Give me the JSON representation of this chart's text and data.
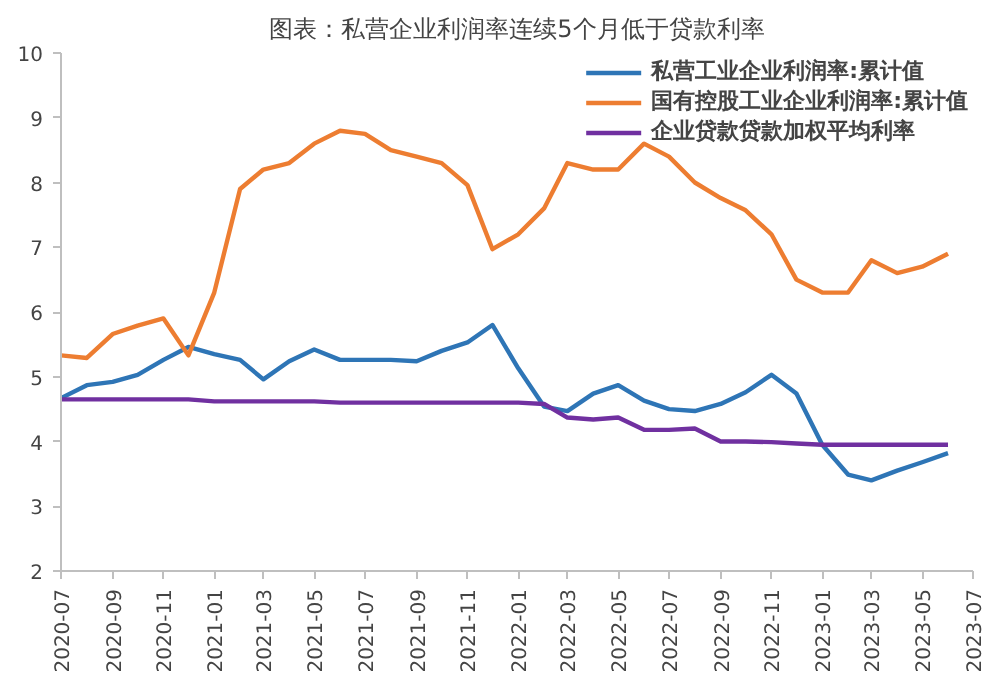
{
  "chart_data": {
    "type": "line",
    "title": "图表：私营企业利润率连续5个月低于贷款利率",
    "x": [
      "2020-07",
      "2020-08",
      "2020-09",
      "2020-10",
      "2020-11",
      "2020-12",
      "2021-01",
      "2021-02",
      "2021-03",
      "2021-04",
      "2021-05",
      "2021-06",
      "2021-07",
      "2021-08",
      "2021-09",
      "2021-10",
      "2021-11",
      "2021-12",
      "2022-01",
      "2022-02",
      "2022-03",
      "2022-04",
      "2022-05",
      "2022-06",
      "2022-07",
      "2022-08",
      "2022-09",
      "2022-10",
      "2022-11",
      "2022-12",
      "2023-01",
      "2023-02",
      "2023-03",
      "2023-04",
      "2023-05",
      "2023-06"
    ],
    "series": [
      {
        "name": "私营工业企业利润率:累计值",
        "color": "#2e75b6",
        "values": [
          4.67,
          4.87,
          4.92,
          5.03,
          5.26,
          5.46,
          5.35,
          5.26,
          4.96,
          5.24,
          5.42,
          5.26,
          5.26,
          5.26,
          5.24,
          5.4,
          5.53,
          5.8,
          5.13,
          4.54,
          4.47,
          4.74,
          4.87,
          4.63,
          4.5,
          4.47,
          4.58,
          4.76,
          5.03,
          4.74,
          3.95,
          3.49,
          3.4,
          3.55,
          3.68,
          3.82
        ]
      },
      {
        "name": "国有控股工业企业利润率:累计值",
        "color": "#ed7d31",
        "values": [
          5.33,
          5.29,
          5.66,
          5.79,
          5.9,
          5.33,
          6.3,
          7.9,
          8.2,
          8.3,
          8.6,
          8.8,
          8.75,
          8.5,
          8.4,
          8.3,
          7.96,
          6.97,
          7.2,
          7.6,
          8.3,
          8.2,
          8.2,
          8.6,
          8.4,
          8.0,
          7.76,
          7.57,
          7.2,
          6.5,
          6.3,
          6.3,
          6.8,
          6.6,
          6.7,
          6.9
        ]
      },
      {
        "name": "企业贷款贷款加权平均利率",
        "color": "#7030a0",
        "values": [
          4.65,
          4.65,
          4.65,
          4.65,
          4.65,
          4.65,
          4.62,
          4.62,
          4.62,
          4.62,
          4.62,
          4.6,
          4.6,
          4.6,
          4.6,
          4.6,
          4.6,
          4.6,
          4.6,
          4.58,
          4.37,
          4.34,
          4.37,
          4.18,
          4.18,
          4.2,
          4.0,
          4.0,
          3.99,
          3.97,
          3.95,
          3.95,
          3.95,
          3.95,
          3.95,
          3.95
        ]
      }
    ],
    "xlim": [
      "2020-07",
      "2023-07"
    ],
    "xticks": [
      "2020-07",
      "2020-09",
      "2020-11",
      "2021-01",
      "2021-03",
      "2021-05",
      "2021-07",
      "2021-09",
      "2021-11",
      "2022-01",
      "2022-03",
      "2022-05",
      "2022-07",
      "2022-09",
      "2022-11",
      "2023-01",
      "2023-03",
      "2023-05",
      "2023-07"
    ],
    "ylim": [
      2,
      10
    ],
    "yticks": [
      2,
      3,
      4,
      5,
      6,
      7,
      8,
      9,
      10
    ],
    "grid": false,
    "legend": "top right",
    "line_style": "solid",
    "marker": "none"
  }
}
